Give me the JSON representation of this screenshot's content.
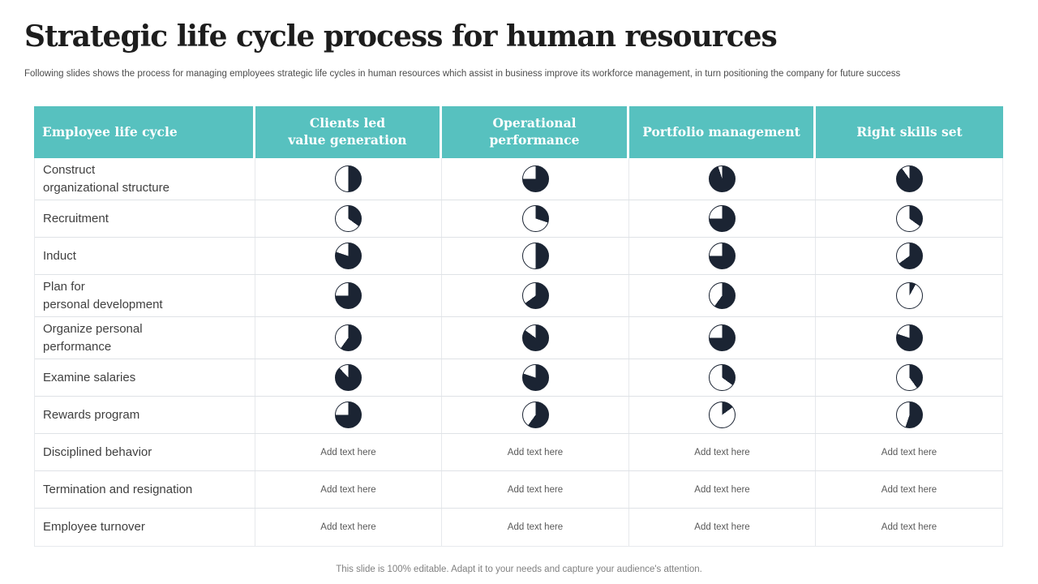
{
  "title": "Strategic life cycle process for human resources",
  "subtitle": "Following slides shows the process for managing employees strategic life cycles in human resources which assist in  business improve its workforce management, in turn positioning the company for future success",
  "footer": "This slide is 100% editable. Adapt it to your needs and capture your audience's attention.",
  "colors": {
    "header_bg": "#57C1BF",
    "pie_dark": "#1B2433",
    "pie_empty": "#FFFFFF"
  },
  "table": {
    "header": [
      "Employee life cycle",
      "Clients led\nvalue generation",
      "Operational\nperformance",
      "Portfolio management",
      "Right skills set"
    ],
    "rows": [
      {
        "label": "Construct\norganizational structure",
        "type": "pie",
        "pies": [
          50,
          75,
          95,
          90
        ]
      },
      {
        "label": "Recruitment",
        "type": "pie",
        "pies": [
          35,
          30,
          75,
          35
        ]
      },
      {
        "label": "Induct",
        "type": "pie",
        "pies": [
          80,
          50,
          75,
          65
        ]
      },
      {
        "label": "Plan for\npersonal development",
        "type": "pie",
        "pies": [
          75,
          65,
          60,
          8
        ]
      },
      {
        "label": "Organize personal\nperformance",
        "type": "pie",
        "pies": [
          60,
          85,
          75,
          80
        ]
      },
      {
        "label": "Examine salaries",
        "type": "pie",
        "pies": [
          88,
          80,
          35,
          40
        ]
      },
      {
        "label": "Rewards program",
        "type": "pie",
        "pies": [
          75,
          60,
          15,
          55
        ]
      },
      {
        "label": "Disciplined behavior",
        "type": "text",
        "cells": [
          "Add text here",
          "Add text here",
          "Add text here",
          "Add text here"
        ]
      },
      {
        "label": "Termination and resignation",
        "type": "text",
        "cells": [
          "Add text here",
          "Add text here",
          "Add text here",
          "Add text here"
        ]
      },
      {
        "label": "Employee turnover",
        "type": "text",
        "cells": [
          "Add text here",
          "Add text here",
          "Add text here",
          "Add text here"
        ]
      }
    ]
  }
}
